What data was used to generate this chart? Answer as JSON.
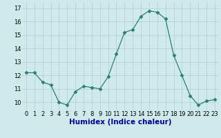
{
  "x": [
    0,
    1,
    2,
    3,
    4,
    5,
    6,
    7,
    8,
    9,
    10,
    11,
    12,
    13,
    14,
    15,
    16,
    17,
    18,
    19,
    20,
    21,
    22,
    23
  ],
  "y": [
    12.2,
    12.2,
    11.5,
    11.3,
    10.0,
    9.8,
    10.8,
    11.2,
    11.1,
    11.0,
    11.9,
    13.6,
    15.2,
    15.4,
    16.4,
    16.8,
    16.7,
    16.2,
    13.5,
    12.0,
    10.5,
    9.8,
    10.1,
    10.2
  ],
  "line_color": "#2e7d6e",
  "marker_color": "#2e7d6e",
  "bg_color": "#ceeaea",
  "grid_color": "#b8d4d4",
  "xlabel": "Humidex (Indice chaleur)",
  "xlabel_color": "#00008b",
  "ylim": [
    9.4,
    17.4
  ],
  "yticks": [
    10,
    11,
    12,
    13,
    14,
    15,
    16,
    17
  ],
  "xticks": [
    0,
    1,
    2,
    3,
    4,
    5,
    6,
    7,
    8,
    9,
    10,
    11,
    12,
    13,
    14,
    15,
    16,
    17,
    18,
    19,
    20,
    21,
    22,
    23
  ],
  "tick_fontsize": 6.0,
  "xlabel_fontsize": 7.5,
  "marker_size": 2.5
}
